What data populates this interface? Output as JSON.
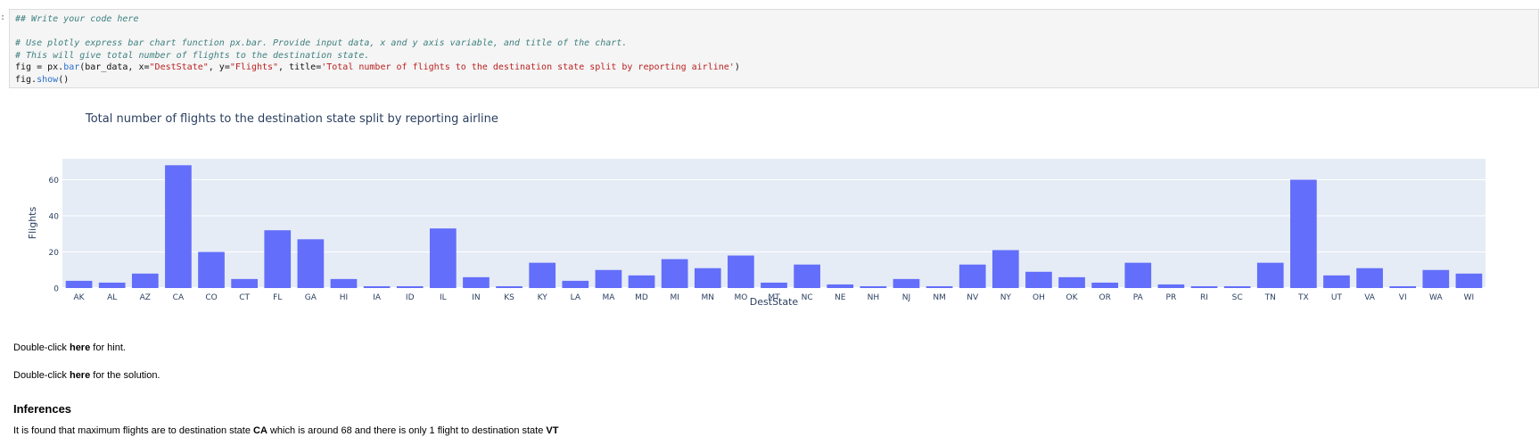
{
  "cell": {
    "prompt": ":",
    "code_lines": [
      {
        "type": "comment",
        "text": "## Write your code here"
      },
      {
        "type": "blank",
        "text": ""
      },
      {
        "type": "comment",
        "text": "# Use plotly express bar chart function px.bar. Provide input data, x and y axis variable, and title of the chart."
      },
      {
        "type": "comment",
        "text": "# This will give total number of flights to the destination state."
      },
      {
        "type": "code",
        "parts": [
          {
            "t": "fig = px.",
            "c": ""
          },
          {
            "t": "bar",
            "c": "fn"
          },
          {
            "t": "(bar_data, x=",
            "c": ""
          },
          {
            "t": "\"DestState\"",
            "c": "str"
          },
          {
            "t": ", y=",
            "c": ""
          },
          {
            "t": "\"Flights\"",
            "c": "str"
          },
          {
            "t": ", title=",
            "c": ""
          },
          {
            "t": "'Total number of flights to the destination state split by reporting airline'",
            "c": "str"
          },
          {
            "t": ")",
            "c": ""
          }
        ]
      },
      {
        "type": "code",
        "parts": [
          {
            "t": "fig.",
            "c": ""
          },
          {
            "t": "show",
            "c": "fn"
          },
          {
            "t": "()",
            "c": ""
          }
        ]
      }
    ]
  },
  "chart_data": {
    "type": "bar",
    "title": "Total number of flights to the destination state split by reporting airline",
    "xlabel": "DestState",
    "ylabel": "Flights",
    "categories": [
      "AK",
      "AL",
      "AZ",
      "CA",
      "CO",
      "CT",
      "FL",
      "GA",
      "HI",
      "IA",
      "ID",
      "IL",
      "IN",
      "KS",
      "KY",
      "LA",
      "MA",
      "MD",
      "MI",
      "MN",
      "MO",
      "MT",
      "NC",
      "NE",
      "NH",
      "NJ",
      "NM",
      "NV",
      "NY",
      "OH",
      "OK",
      "OR",
      "PA",
      "PR",
      "RI",
      "SC",
      "TN",
      "TX",
      "UT",
      "VA",
      "VI",
      "WA",
      "WI"
    ],
    "values": [
      4,
      3,
      8,
      68,
      20,
      5,
      32,
      27,
      5,
      1,
      1,
      33,
      6,
      1,
      14,
      4,
      10,
      7,
      16,
      11,
      18,
      3,
      13,
      2,
      1,
      5,
      1,
      13,
      21,
      9,
      6,
      3,
      14,
      2,
      1,
      1,
      14,
      60,
      7,
      11,
      1,
      10,
      8
    ],
    "yticks": [
      0,
      20,
      40,
      60
    ],
    "ylim": [
      0,
      71.6
    ],
    "grid": true,
    "bar_color": "#636efa",
    "plot_bg": "#e5ecf6"
  },
  "markdown": {
    "hint": {
      "pre": "Double-click ",
      "bold": "here",
      "post": " for hint."
    },
    "solution": {
      "pre": "Double-click ",
      "bold": "here",
      "post": " for the solution."
    },
    "inferences_heading": "Inferences",
    "inference_text": {
      "pre": "It is found that maximum flights are to destination state ",
      "bold1": "CA",
      "mid": " which is around 68 and there is only 1 flight to destination state ",
      "bold2": "VT"
    }
  }
}
